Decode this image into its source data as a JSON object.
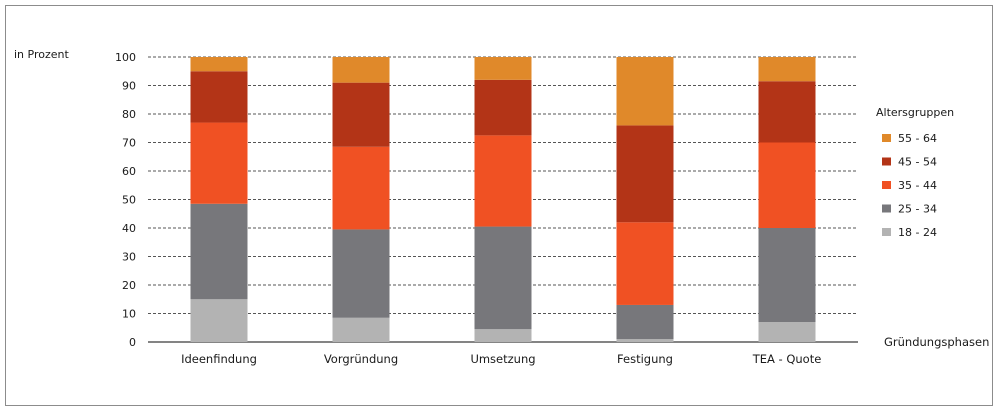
{
  "chart_data": {
    "type": "bar",
    "stacked": true,
    "ylabel": "in Prozent",
    "xlabel": "Gründungsphasen",
    "ylim": [
      0,
      100
    ],
    "yticks": [
      0,
      10,
      20,
      30,
      40,
      50,
      60,
      70,
      80,
      90,
      100
    ],
    "grid": "horizontal-dashed",
    "legend_title": "Altersgruppen",
    "legend_position": "right",
    "categories": [
      "Ideenfindung",
      "Vorgründung",
      "Umsetzung",
      "Festigung",
      "TEA - Quote"
    ],
    "series": [
      {
        "name": "18 - 24",
        "color": "#b3b3b3",
        "values": [
          15,
          8.5,
          4.5,
          1,
          7
        ]
      },
      {
        "name": "25 - 34",
        "color": "#77777b",
        "values": [
          33.5,
          31,
          36,
          12,
          33
        ]
      },
      {
        "name": "35 - 44",
        "color": "#f05123",
        "values": [
          28.5,
          29,
          32,
          29,
          30
        ]
      },
      {
        "name": "45 - 54",
        "color": "#b33417",
        "values": [
          18,
          22.5,
          19.5,
          34,
          21.5
        ]
      },
      {
        "name": "55 - 64",
        "color": "#e0892a",
        "values": [
          5,
          9,
          8,
          24,
          8.5
        ]
      }
    ]
  }
}
